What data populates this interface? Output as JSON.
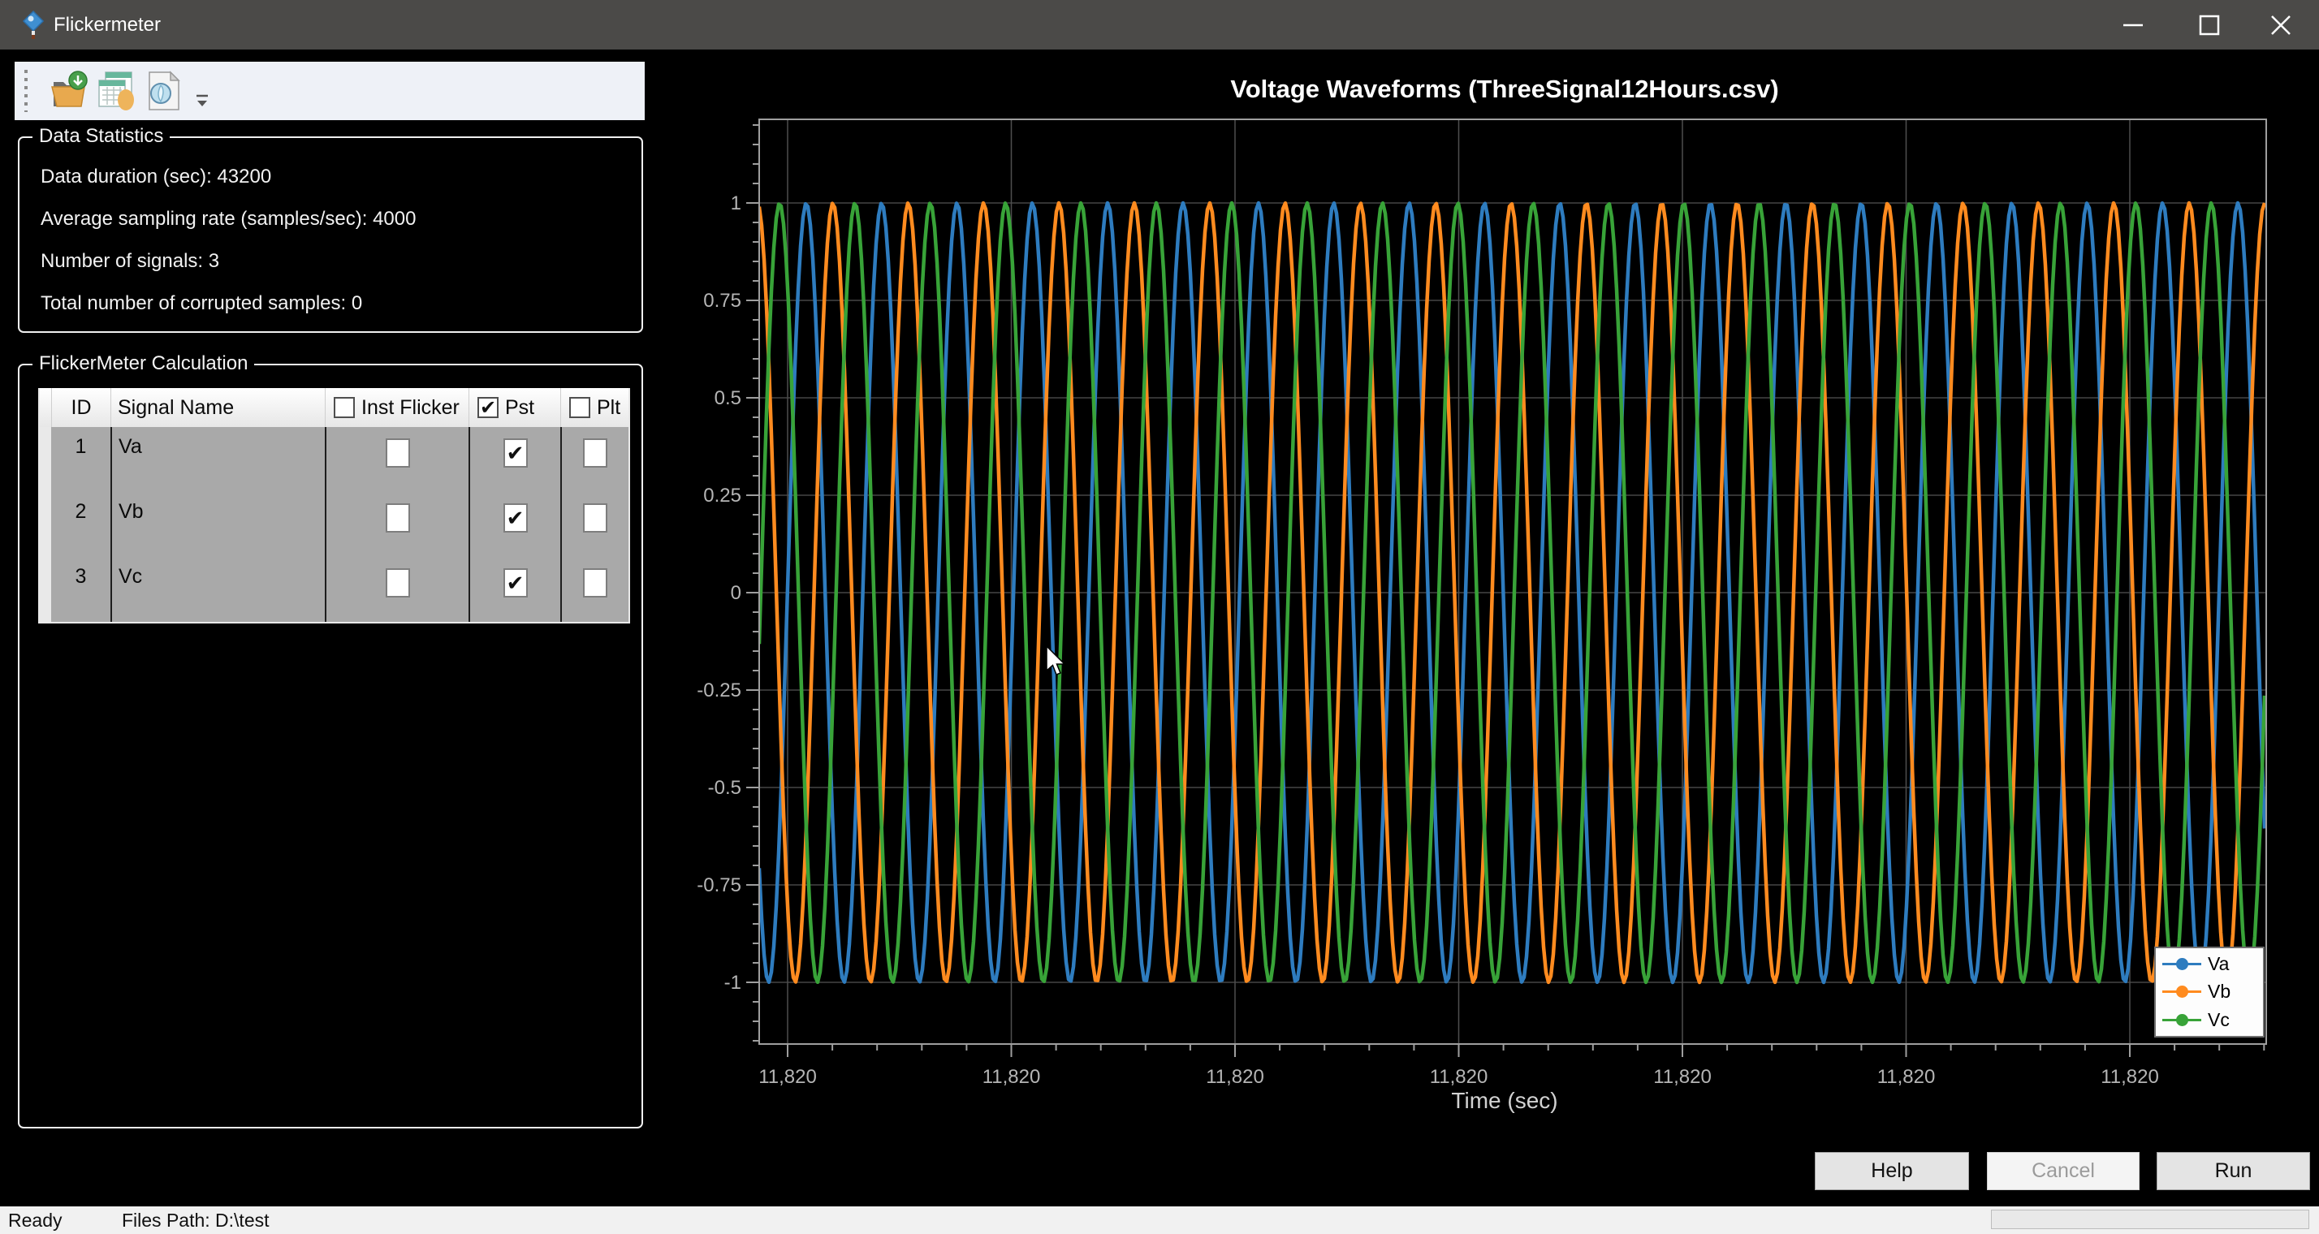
{
  "window": {
    "title": "Flickermeter"
  },
  "toolbar": {
    "icons": [
      "open-data-file-icon",
      "signal-tables-icon",
      "report-preview-icon",
      "toolbar-overflow-icon"
    ]
  },
  "data_statistics": {
    "title": "Data Statistics",
    "lines": [
      "Data duration (sec): 43200",
      "Average sampling rate (samples/sec): 4000",
      "Number of signals: 3",
      "Total number of corrupted samples: 0"
    ]
  },
  "flickermeter_calculation": {
    "title": "FlickerMeter Calculation",
    "columns": [
      "ID",
      "Signal Name",
      "Inst Flicker",
      "Pst",
      "Plt"
    ],
    "header_checks": [
      false,
      true,
      false
    ],
    "rows": [
      {
        "id": "1",
        "signal_name": "Va",
        "checks": [
          false,
          true,
          false
        ]
      },
      {
        "id": "2",
        "signal_name": "Vb",
        "checks": [
          false,
          true,
          false
        ]
      },
      {
        "id": "3",
        "signal_name": "Vc",
        "checks": [
          false,
          true,
          false
        ]
      }
    ]
  },
  "chart_data": {
    "type": "line",
    "waveform": "sine",
    "title": "Voltage Waveforms (ThreeSignal12Hours.csv)",
    "xlabel": "Time (sec)",
    "x_tick_labels": [
      "11,820",
      "11,820",
      "11,820",
      "11,820",
      "11,820",
      "11,820",
      "11,820"
    ],
    "y_tick_labels": [
      "1",
      "0.75",
      "0.5",
      "0.25",
      "0",
      "-0.25",
      "-0.5",
      "-0.75",
      "-1"
    ],
    "y_major_step": 0.25,
    "ylim": [
      -1.16,
      1.21
    ],
    "grid": true,
    "legend_position": "bottom-right",
    "cycles_visible": 20,
    "series": [
      {
        "name": "Va",
        "color": "#2e7cbf",
        "amplitude": 1,
        "peak_offset_fraction": 0.625
      },
      {
        "name": "Vb",
        "color": "#ff8b1f",
        "amplitude": 1,
        "peak_offset_fraction": 0.978
      },
      {
        "name": "Vc",
        "color": "#38a338",
        "amplitude": 1,
        "peak_offset_fraction": 0.271
      }
    ]
  },
  "buttons": [
    {
      "label": "Help",
      "enabled": true
    },
    {
      "label": "Cancel",
      "enabled": false
    },
    {
      "label": "Run",
      "enabled": true
    }
  ],
  "status_bar": {
    "ready": "Ready",
    "files_path": "Files Path: D:\\test"
  }
}
